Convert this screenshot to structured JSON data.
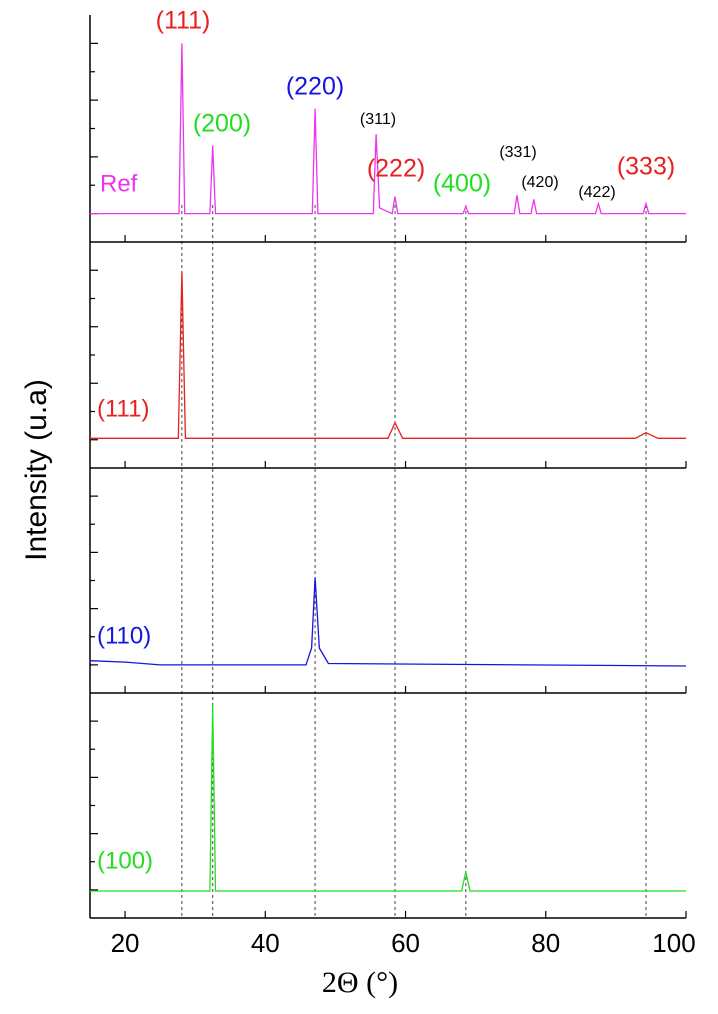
{
  "figure": {
    "y_label": "Intensity (u.a)",
    "reference_lines": [
      28.1,
      32.5,
      47.1,
      58.5,
      68.6,
      94.3
    ]
  },
  "chart_data": [
    {
      "type": "line",
      "xlim": [
        15,
        100
      ],
      "ylim": [
        0,
        8
      ],
      "yticks": [
        1,
        2,
        3,
        4,
        5,
        6,
        7
      ],
      "series": [
        {
          "name": "Ref",
          "color": "#ee33ee",
          "x": [
            15,
            27.7,
            28.1,
            28.5,
            32.1,
            32.5,
            32.9,
            46.7,
            47.1,
            47.5,
            55.4,
            55.8,
            56.3,
            58.1,
            58.5,
            58.9,
            68.2,
            68.6,
            69.0,
            75.5,
            75.9,
            76.3,
            77.9,
            78.3,
            78.7,
            87.1,
            87.5,
            87.9,
            93.9,
            94.3,
            94.7,
            100
          ],
          "values": [
            1.0,
            1.0,
            7.0,
            1.0,
            1.0,
            3.4,
            1.0,
            1.0,
            4.7,
            1.0,
            1.0,
            3.8,
            1.2,
            1.0,
            1.6,
            1.0,
            1.0,
            1.25,
            1.0,
            1.0,
            1.65,
            1.0,
            1.0,
            1.5,
            1.0,
            1.0,
            1.35,
            1.0,
            1.0,
            1.35,
            1.0,
            1.0
          ]
        }
      ],
      "annotations": [
        {
          "text": "(111)",
          "color": "#e8201f"
        },
        {
          "text": "(200)",
          "color": "#22dd22"
        },
        {
          "text": "(220)",
          "color": "#1515e0"
        },
        {
          "text": "(311)",
          "color": "#000000"
        },
        {
          "text": "(222)",
          "color": "#e8201f"
        },
        {
          "text": "(400)",
          "color": "#22dd22"
        },
        {
          "text": "(331)",
          "color": "#000000"
        },
        {
          "text": "(420)",
          "color": "#000000"
        },
        {
          "text": "(422)",
          "color": "#000000"
        },
        {
          "text": "(333)",
          "color": "#e8201f"
        }
      ]
    },
    {
      "type": "line",
      "xlim": [
        15,
        100
      ],
      "ylim": [
        0,
        8
      ],
      "yticks": [
        1,
        2,
        3,
        4,
        5,
        6,
        7
      ],
      "series": [
        {
          "name": "(111)",
          "color": "#e8201f",
          "x": [
            15,
            27.6,
            28.1,
            28.6,
            57.5,
            58.5,
            59.6,
            92.8,
            94.3,
            96.0,
            100
          ],
          "values": [
            1.05,
            1.05,
            6.95,
            1.05,
            1.05,
            1.6,
            1.05,
            1.05,
            1.25,
            1.05,
            1.05
          ]
        }
      ]
    },
    {
      "type": "line",
      "xlim": [
        15,
        100
      ],
      "ylim": [
        0,
        8
      ],
      "yticks": [
        1,
        2,
        3,
        4,
        5,
        6,
        7
      ],
      "series": [
        {
          "name": "(110)",
          "color": "#1515e0",
          "x": [
            15,
            20,
            25,
            45.8,
            46.6,
            47.1,
            47.7,
            49,
            100
          ],
          "values": [
            1.15,
            1.1,
            1.0,
            1.0,
            1.6,
            4.1,
            1.6,
            1.05,
            0.96
          ]
        }
      ]
    },
    {
      "type": "line",
      "xlim": [
        15,
        100
      ],
      "ylim": [
        0,
        8
      ],
      "yticks": [
        1,
        2,
        3,
        4,
        5,
        6,
        7
      ],
      "xticks": [
        20,
        40,
        60,
        80,
        100
      ],
      "x_label": "2Θ (°)",
      "series": [
        {
          "name": "(100)",
          "color": "#22dd22",
          "x": [
            15,
            32.1,
            32.5,
            32.9,
            68.0,
            68.6,
            69.2,
            100
          ],
          "values": [
            0.96,
            0.96,
            7.58,
            0.96,
            0.96,
            1.64,
            0.96,
            0.96
          ]
        }
      ]
    }
  ]
}
